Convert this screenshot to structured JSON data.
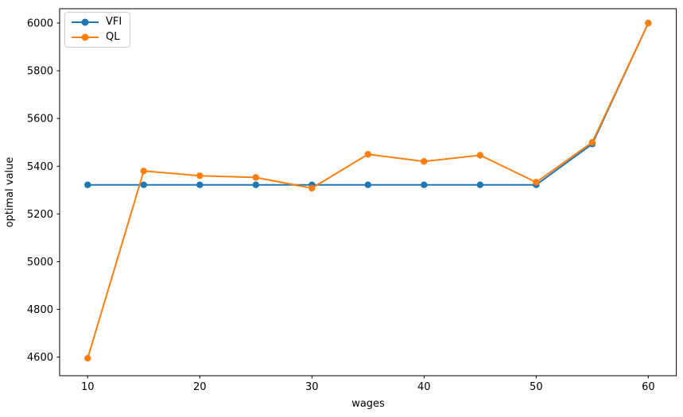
{
  "chart_data": {
    "type": "line",
    "title": "",
    "xlabel": "wages",
    "ylabel": "optimal value",
    "x": [
      10,
      15,
      20,
      25,
      30,
      35,
      40,
      45,
      50,
      55,
      60
    ],
    "series": [
      {
        "name": "VFI",
        "color": "#1f77b4",
        "marker": "o",
        "values": [
          5322,
          5322,
          5322,
          5322,
          5322,
          5322,
          5322,
          5322,
          5322,
          5493,
          6000
        ]
      },
      {
        "name": "QL",
        "color": "#ff7f0e",
        "marker": "o",
        "values": [
          4595,
          5380,
          5360,
          5353,
          5308,
          5450,
          5420,
          5446,
          5333,
          5500,
          6000
        ]
      }
    ],
    "xticks": [
      10,
      20,
      30,
      40,
      50,
      60
    ],
    "yticks": [
      4600,
      4800,
      5000,
      5200,
      5400,
      5600,
      5800,
      6000
    ],
    "xlim": [
      7.5,
      62.5
    ],
    "ylim": [
      4522,
      6060
    ],
    "grid": false,
    "legend_position": "upper left",
    "background_color": "#ffffff",
    "axis_color": "#000000"
  },
  "legend": {
    "items": [
      "VFI",
      "QL"
    ]
  }
}
